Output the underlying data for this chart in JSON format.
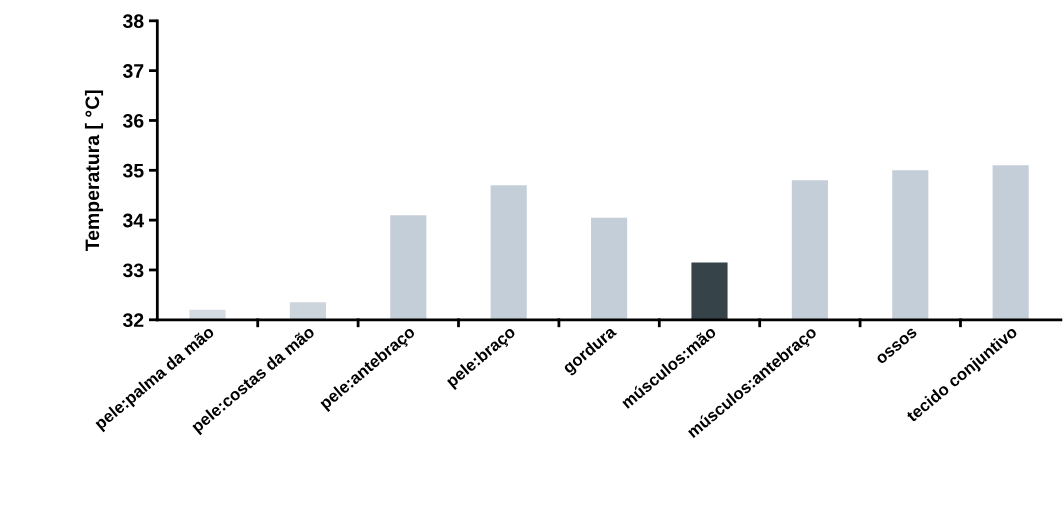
{
  "chart_data": {
    "type": "bar",
    "ylabel": "Temperatura [ °C]",
    "categories": [
      "pele:palma da mão",
      "pele:costas da mão",
      "pele:antebraço",
      "pele:braço",
      "gordura",
      "músculos:mão",
      "músculos:antebraço",
      "ossos",
      "tecido conjuntivo"
    ],
    "values": [
      32.2,
      32.35,
      34.1,
      34.7,
      34.05,
      33.15,
      34.8,
      35.0,
      35.1
    ],
    "colors": [
      "#d4dbe2",
      "#ccd4dc",
      "#c4ced8",
      "#c4ced8",
      "#c4ced8",
      "#36444a",
      "#c4ced8",
      "#c4ced8",
      "#c4ced8"
    ],
    "ylim": [
      32,
      38
    ],
    "yticks": [
      32,
      33,
      34,
      35,
      36,
      37,
      38
    ],
    "grid": false,
    "legend": false
  }
}
